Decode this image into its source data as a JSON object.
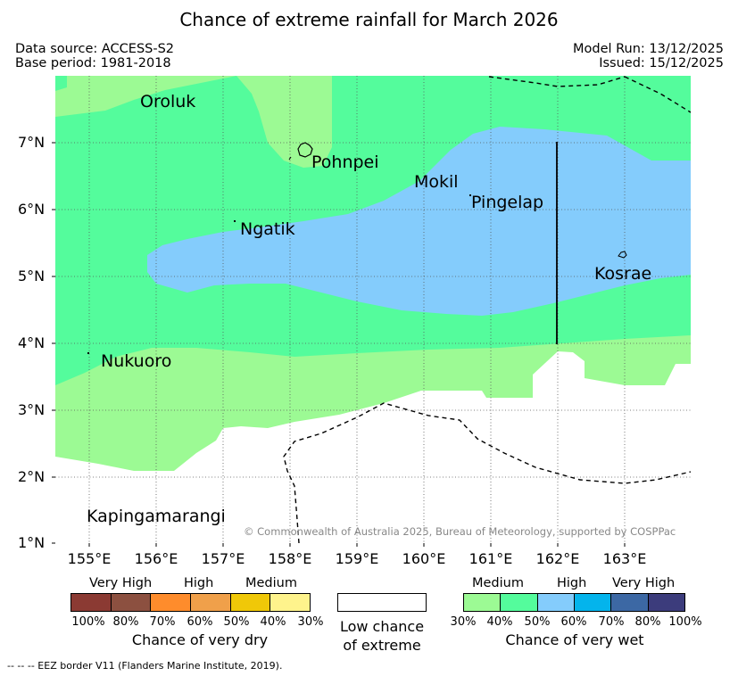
{
  "title": "Chance of extreme rainfall for March 2026",
  "data_source": "Data source: ACCESS-S2",
  "base_period": "Base period: 1981-2018",
  "model_run": "Model Run: 13/12/2025",
  "issued": "Issued: 15/12/2025",
  "copyright": "© Commonwealth of Australia 2025, Bureau of Meteorology, supported by COSPPac",
  "footnote": "-- -- -- EEZ border V11 (Flanders Marine Institute, 2019).",
  "map": {
    "lat_ticks": [
      "7°N",
      "6°N",
      "5°N",
      "4°N",
      "3°N",
      "2°N",
      "1°N"
    ],
    "lon_ticks": [
      "155°E",
      "156°E",
      "157°E",
      "158°E",
      "159°E",
      "160°E",
      "161°E",
      "162°E",
      "163°E"
    ],
    "places": {
      "oroluk": "Oroluk",
      "pohnpei": "Pohnpei",
      "mokil": "Mokil",
      "pingelap": "Pingelap",
      "ngatik": "Ngatik",
      "kosrae": "Kosrae",
      "nukuoro": "Nukuoro",
      "kapingamarangi": "Kapingamarangi"
    }
  },
  "legend": {
    "dry": {
      "categories": [
        "Very High",
        "High",
        "Medium"
      ],
      "colors": [
        "#8b3a33",
        "#8c5040",
        "#fe8c2c",
        "#f0a04a",
        "#f0c808",
        "#fef38c"
      ],
      "pcts": [
        "100%",
        "80%",
        "70%",
        "60%",
        "50%",
        "40%",
        "30%"
      ],
      "caption": "Chance of very dry"
    },
    "low": {
      "line1": "Low chance",
      "line2": "of extreme"
    },
    "wet": {
      "categories": [
        "Medium",
        "High",
        "Very High"
      ],
      "colors": [
        "#9cfa94",
        "#54fc9c",
        "#84ccfc",
        "#04b4ec",
        "#3c68a4",
        "#3c3c7c"
      ],
      "pcts": [
        "30%",
        "40%",
        "50%",
        "60%",
        "70%",
        "80%",
        "100%"
      ],
      "caption": "Chance of very wet"
    }
  }
}
